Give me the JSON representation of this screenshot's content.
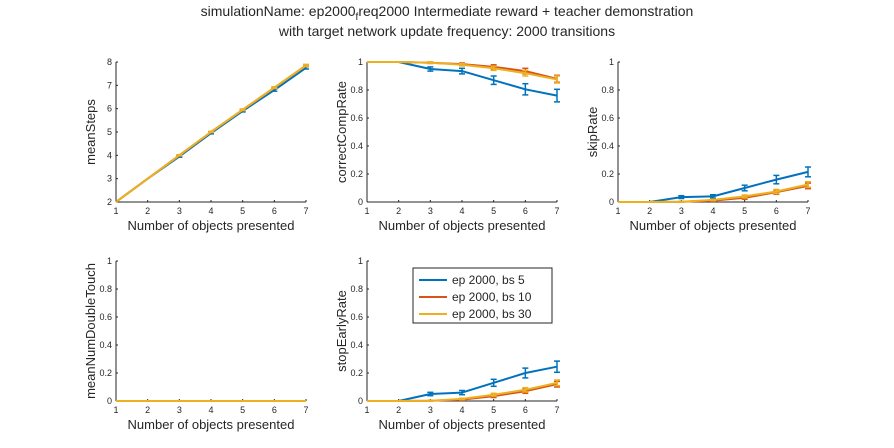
{
  "figure": {
    "title_part1": "simulationName: ep2000",
    "title_sub": "f",
    "title_part2": "req2000  Intermediate reward + teacher demonstration",
    "title_line2": "with target network update frequency: 2000 transitions"
  },
  "colors": {
    "series": [
      "#0072BD",
      "#D95319",
      "#EDB120"
    ],
    "axis": "#262626"
  },
  "legend": {
    "entries": [
      "ep 2000, bs 5",
      "ep 2000, bs 10",
      "ep 2000, bs 30"
    ]
  },
  "chart_data": [
    {
      "type": "line",
      "ylabel": "meanSteps",
      "xlabel": "Number of objects presented",
      "x": [
        1,
        2,
        3,
        4,
        5,
        6,
        7
      ],
      "xlim": [
        1,
        7
      ],
      "ylim": [
        2,
        8
      ],
      "yticks": [
        "2",
        "3",
        "4",
        "5",
        "6",
        "7",
        "8"
      ],
      "series": [
        {
          "values": [
            2,
            3,
            3.95,
            4.95,
            5.9,
            6.8,
            7.75
          ],
          "err": [
            0,
            0,
            0.03,
            0.03,
            0.04,
            0.05,
            0.05
          ]
        },
        {
          "values": [
            2,
            3,
            4,
            5,
            5.95,
            6.9,
            7.85
          ],
          "err": [
            0,
            0,
            0.02,
            0.02,
            0.03,
            0.03,
            0.04
          ]
        },
        {
          "values": [
            2,
            3,
            4,
            5,
            5.95,
            6.9,
            7.85
          ],
          "err": [
            0,
            0,
            0.02,
            0.02,
            0.03,
            0.03,
            0.04
          ]
        }
      ]
    },
    {
      "type": "line",
      "ylabel": "correctCompRate",
      "xlabel": "Number of objects presented",
      "x": [
        1,
        2,
        3,
        4,
        5,
        6,
        7
      ],
      "xlim": [
        1,
        7
      ],
      "ylim": [
        0,
        1
      ],
      "yticks": [
        "0",
        "0.2",
        "0.4",
        "0.6",
        "0.8",
        "1"
      ],
      "series": [
        {
          "values": [
            1,
            1,
            0.95,
            0.935,
            0.87,
            0.805,
            0.76
          ],
          "err": [
            0,
            0,
            0.015,
            0.02,
            0.03,
            0.04,
            0.045
          ]
        },
        {
          "values": [
            1,
            1,
            0.995,
            0.985,
            0.965,
            0.935,
            0.88
          ],
          "err": [
            0,
            0,
            0.005,
            0.008,
            0.015,
            0.02,
            0.025
          ]
        },
        {
          "values": [
            1,
            1,
            0.995,
            0.98,
            0.955,
            0.92,
            0.875
          ],
          "err": [
            0,
            0,
            0.005,
            0.008,
            0.015,
            0.02,
            0.025
          ]
        }
      ]
    },
    {
      "type": "line",
      "ylabel": "skipRate",
      "xlabel": "Number of objects presented",
      "x": [
        1,
        2,
        3,
        4,
        5,
        6,
        7
      ],
      "xlim": [
        1,
        7
      ],
      "ylim": [
        0,
        1
      ],
      "yticks": [
        "0",
        "0.2",
        "0.4",
        "0.6",
        "0.8",
        "1"
      ],
      "series": [
        {
          "values": [
            0,
            0,
            0.035,
            0.04,
            0.1,
            0.16,
            0.215
          ],
          "err": [
            0,
            0,
            0.01,
            0.012,
            0.02,
            0.03,
            0.035
          ]
        },
        {
          "values": [
            0,
            0,
            0.002,
            0.01,
            0.03,
            0.07,
            0.115
          ],
          "err": [
            0,
            0,
            0.002,
            0.005,
            0.01,
            0.015,
            0.02
          ]
        },
        {
          "values": [
            0,
            0,
            0.002,
            0.015,
            0.04,
            0.075,
            0.125
          ],
          "err": [
            0,
            0,
            0.002,
            0.005,
            0.01,
            0.015,
            0.02
          ]
        }
      ]
    },
    {
      "type": "line",
      "ylabel": "meanNumDoubleTouch",
      "xlabel": "Number of objects presented",
      "x": [
        1,
        2,
        3,
        4,
        5,
        6,
        7
      ],
      "xlim": [
        1,
        7
      ],
      "ylim": [
        0,
        1
      ],
      "yticks": [
        "0",
        "0.2",
        "0.4",
        "0.6",
        "0.8",
        "1"
      ],
      "series": [
        {
          "values": [
            0,
            0,
            0,
            0,
            0,
            0,
            0
          ],
          "err": [
            0,
            0,
            0,
            0,
            0,
            0,
            0
          ]
        },
        {
          "values": [
            0,
            0,
            0,
            0,
            0,
            0,
            0
          ],
          "err": [
            0,
            0,
            0,
            0,
            0,
            0,
            0
          ]
        },
        {
          "values": [
            0,
            0,
            0,
            0,
            0,
            0,
            0
          ],
          "err": [
            0,
            0,
            0,
            0,
            0,
            0,
            0
          ]
        }
      ]
    },
    {
      "type": "line",
      "ylabel": "stopEarlyRate",
      "xlabel": "Number of objects presented",
      "x": [
        1,
        2,
        3,
        4,
        5,
        6,
        7
      ],
      "xlim": [
        1,
        7
      ],
      "ylim": [
        0,
        1
      ],
      "yticks": [
        "0",
        "0.2",
        "0.4",
        "0.6",
        "0.8",
        "1"
      ],
      "legend": "top-center",
      "series": [
        {
          "values": [
            0,
            0,
            0.05,
            0.06,
            0.13,
            0.2,
            0.245
          ],
          "err": [
            0,
            0,
            0.012,
            0.015,
            0.025,
            0.035,
            0.04
          ]
        },
        {
          "values": [
            0,
            0,
            0.002,
            0.01,
            0.035,
            0.07,
            0.12
          ],
          "err": [
            0,
            0,
            0.002,
            0.005,
            0.01,
            0.015,
            0.02
          ]
        },
        {
          "values": [
            0,
            0,
            0.002,
            0.015,
            0.045,
            0.08,
            0.13
          ],
          "err": [
            0,
            0,
            0.002,
            0.005,
            0.01,
            0.015,
            0.02
          ]
        }
      ]
    }
  ]
}
